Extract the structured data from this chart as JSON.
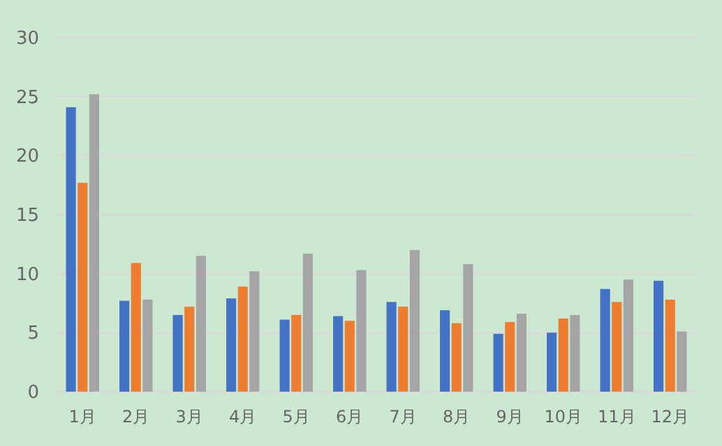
{
  "chart_data": {
    "type": "bar",
    "categories": [
      "1月",
      "2月",
      "3月",
      "4月",
      "5月",
      "6月",
      "7月",
      "8月",
      "9月",
      "10月",
      "11月",
      "12月"
    ],
    "series": [
      {
        "color": "#4472c4",
        "values": [
          24.1,
          7.7,
          6.5,
          7.9,
          6.1,
          6.4,
          7.6,
          6.9,
          4.9,
          5.0,
          8.7,
          9.4
        ]
      },
      {
        "color": "#ed7d31",
        "values": [
          17.7,
          10.9,
          7.2,
          8.9,
          6.5,
          6.0,
          7.2,
          5.8,
          5.9,
          6.2,
          7.6,
          7.8
        ]
      },
      {
        "color": "#a5a5a5",
        "values": [
          25.2,
          7.8,
          11.5,
          10.2,
          11.7,
          10.3,
          12.0,
          10.8,
          6.6,
          6.5,
          9.5,
          5.1
        ]
      }
    ],
    "ylim": [
      0,
      30
    ],
    "yticks": [
      0,
      5,
      10,
      15,
      20,
      25,
      30
    ],
    "grid": "y"
  }
}
